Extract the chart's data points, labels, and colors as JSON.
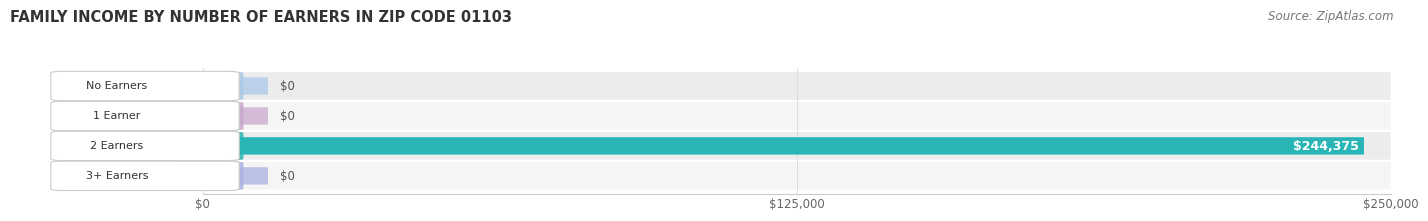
{
  "title": "FAMILY INCOME BY NUMBER OF EARNERS IN ZIP CODE 01103",
  "source": "Source: ZipAtlas.com",
  "categories": [
    "No Earners",
    "1 Earner",
    "2 Earners",
    "3+ Earners"
  ],
  "values": [
    0,
    0,
    244375,
    0
  ],
  "bar_colors": [
    "#aac9e8",
    "#c9a8cc",
    "#29b5b5",
    "#aab2e0"
  ],
  "row_bg_colors": [
    "#ececec",
    "#f5f5f5",
    "#ececec",
    "#f5f5f5"
  ],
  "xlim": [
    0,
    250000
  ],
  "xtick_labels": [
    "$0",
    "$125,000",
    "$250,000"
  ],
  "value_label_2earners": "$244,375",
  "background_color": "#ffffff",
  "title_fontsize": 10.5,
  "source_fontsize": 8.5
}
